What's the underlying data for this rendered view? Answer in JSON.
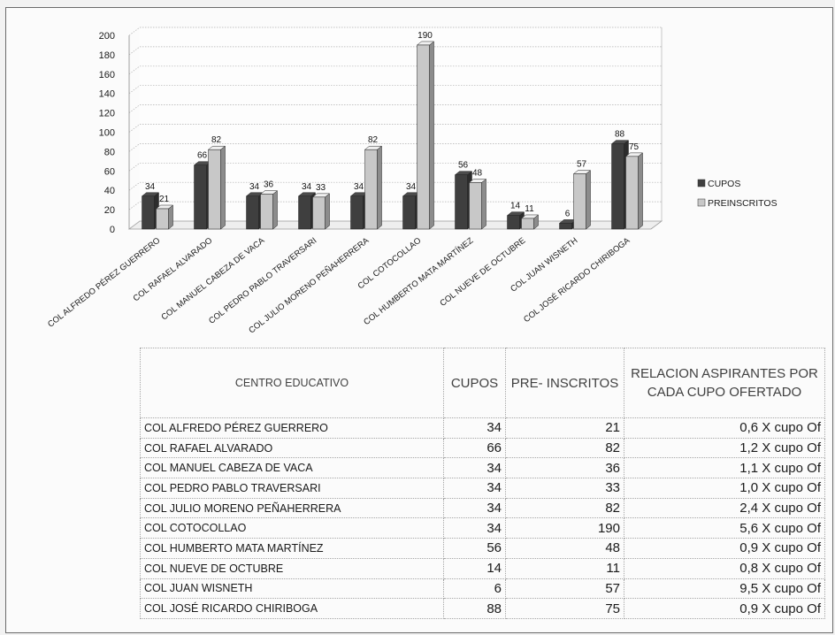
{
  "chart_data": {
    "type": "bar",
    "categories": [
      "COL ALFREDO PÉREZ GUERRERO",
      "COL RAFAEL ALVARADO",
      "COL  MANUEL CABEZA DE VACA",
      "COL PEDRO PABLO TRAVERSARI",
      "COL JULIO MORENO PEÑAHERRERA",
      "COL COTOCOLLAO",
      "COL HUMBERTO MATA MARTÍNEZ",
      "COL NUEVE DE OCTUBRE",
      "COL JUAN WISNETH",
      "COL JOSÉ RICARDO CHIRIBOGA"
    ],
    "series": [
      {
        "name": "CUPOS",
        "values": [
          34,
          66,
          34,
          34,
          34,
          34,
          56,
          14,
          6,
          88
        ],
        "color": "#3f3f3f"
      },
      {
        "name": "PREINSCRITOS",
        "values": [
          21,
          82,
          36,
          33,
          82,
          190,
          48,
          11,
          57,
          75
        ],
        "color": "#c8c8c8"
      }
    ],
    "ylim": [
      0,
      200
    ],
    "yticks": [
      0,
      20,
      40,
      60,
      80,
      100,
      120,
      140,
      160,
      180,
      200
    ],
    "grid": true,
    "legend": "right",
    "style": "3d-clustered-column"
  },
  "table": {
    "headers": {
      "centro": "CENTRO EDUCATIVO",
      "cupos": "CUPOS",
      "pre": "PRE- INSCRITOS",
      "relacion": "RELACION ASPIRANTES POR CADA CUPO OFERTADO"
    },
    "rows": [
      {
        "centro": "COL ALFREDO PÉREZ GUERRERO",
        "cupos": "34",
        "pre": "21",
        "relacion": "0,6 X cupo Of"
      },
      {
        "centro": "COL RAFAEL ALVARADO",
        "cupos": "66",
        "pre": "82",
        "relacion": "1,2 X cupo Of"
      },
      {
        "centro": "COL  MANUEL CABEZA DE VACA",
        "cupos": "34",
        "pre": "36",
        "relacion": "1,1 X cupo Of"
      },
      {
        "centro": "COL PEDRO PABLO TRAVERSARI",
        "cupos": "34",
        "pre": "33",
        "relacion": "1,0 X cupo Of"
      },
      {
        "centro": "COL JULIO MORENO PEÑAHERRERA",
        "cupos": "34",
        "pre": "82",
        "relacion": "2,4 X cupo Of"
      },
      {
        "centro": "COL COTOCOLLAO",
        "cupos": "34",
        "pre": "190",
        "relacion": "5,6 X cupo Of"
      },
      {
        "centro": "COL HUMBERTO MATA MARTÍNEZ",
        "cupos": "56",
        "pre": "48",
        "relacion": "0,9 X cupo Of"
      },
      {
        "centro": "COL NUEVE DE OCTUBRE",
        "cupos": "14",
        "pre": "11",
        "relacion": "0,8 X cupo Of"
      },
      {
        "centro": "COL JUAN WISNETH",
        "cupos": "6",
        "pre": "57",
        "relacion": "9,5 X cupo Of"
      },
      {
        "centro": "COL JOSÉ RICARDO CHIRIBOGA",
        "cupos": "88",
        "pre": "75",
        "relacion": "0,9 X cupo Of"
      }
    ]
  }
}
